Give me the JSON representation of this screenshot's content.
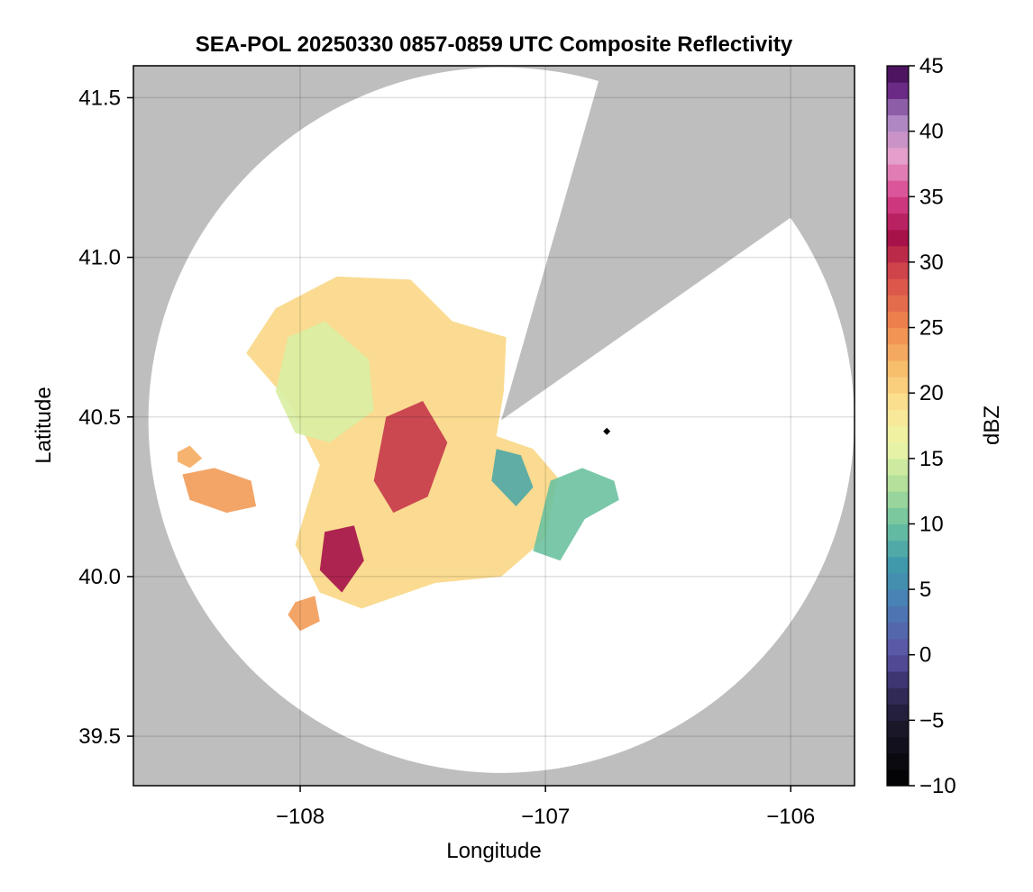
{
  "chart_data": {
    "type": "heatmap",
    "title": "SEA-POL 20250330 0857-0859 UTC Composite Reflectivity",
    "xlabel": "Longitude",
    "ylabel": "Latitude",
    "xlim": [
      -108.68,
      -105.74
    ],
    "ylim": [
      39.345,
      41.6
    ],
    "xticks": [
      -108,
      -107,
      -106
    ],
    "xtick_labels": [
      "−108",
      "−107",
      "−106"
    ],
    "yticks": [
      39.5,
      40.0,
      40.5,
      41.0,
      41.5
    ],
    "ytick_labels": [
      "39.5",
      "40.0",
      "40.5",
      "41.0",
      "41.5"
    ],
    "grid": true,
    "background_color": "#bebebe",
    "radar": {
      "center_lon": -107.18,
      "center_lat": 40.49,
      "radius_lat_deg": 1.105,
      "coverage_color": "#ffffff",
      "blocked_sectors": [
        {
          "from_bearing_deg": 16,
          "to_bearing_deg": 55
        }
      ],
      "site_marker": {
        "lon": -106.75,
        "lat": 40.455,
        "color": "#000000"
      }
    },
    "colorbar": {
      "label": "dBZ",
      "colormap": "spectral_r",
      "range": [
        -10,
        45
      ],
      "ticks": [
        -10,
        -5,
        0,
        5,
        10,
        15,
        20,
        25,
        30,
        35,
        40,
        45
      ],
      "tick_labels": [
        "−10",
        "−5",
        "0",
        "5",
        "10",
        "15",
        "20",
        "25",
        "30",
        "35",
        "40",
        "45"
      ],
      "stops": [
        {
          "v": -10,
          "c": "#000000"
        },
        {
          "v": -5,
          "c": "#1e1a2e"
        },
        {
          "v": -2,
          "c": "#3c3470"
        },
        {
          "v": 0,
          "c": "#5c52a6"
        },
        {
          "v": 4,
          "c": "#4a7fb5"
        },
        {
          "v": 7,
          "c": "#3f9aa9"
        },
        {
          "v": 10,
          "c": "#6cc2a0"
        },
        {
          "v": 13,
          "c": "#b2df9a"
        },
        {
          "v": 16,
          "c": "#edf6a8"
        },
        {
          "v": 19,
          "c": "#fbe493"
        },
        {
          "v": 22,
          "c": "#f7bc6a"
        },
        {
          "v": 25,
          "c": "#f08a4e"
        },
        {
          "v": 29,
          "c": "#d54a4a"
        },
        {
          "v": 32,
          "c": "#a51049"
        },
        {
          "v": 35,
          "c": "#d7418c"
        },
        {
          "v": 38,
          "c": "#e7a0cc"
        },
        {
          "v": 41,
          "c": "#a783c0"
        },
        {
          "v": 43,
          "c": "#6d2c8a"
        },
        {
          "v": 45,
          "c": "#3e0a4e"
        }
      ]
    },
    "echo_regions": [
      {
        "name": "main-band",
        "dbz": 20,
        "poly": [
          [
            -108.1,
            40.84
          ],
          [
            -107.85,
            40.94
          ],
          [
            -107.55,
            40.93
          ],
          [
            -107.38,
            40.8
          ],
          [
            -107.16,
            40.75
          ],
          [
            -107.17,
            40.58
          ],
          [
            -107.2,
            40.44
          ],
          [
            -107.05,
            40.4
          ],
          [
            -106.95,
            40.31
          ],
          [
            -107.0,
            40.12
          ],
          [
            -107.18,
            40.0
          ],
          [
            -107.45,
            39.98
          ],
          [
            -107.75,
            39.9
          ],
          [
            -107.92,
            39.95
          ],
          [
            -108.02,
            40.1
          ],
          [
            -107.92,
            40.35
          ],
          [
            -108.05,
            40.55
          ],
          [
            -108.22,
            40.7
          ]
        ]
      },
      {
        "name": "northwest-plateau",
        "dbz": 15,
        "poly": [
          [
            -108.05,
            40.75
          ],
          [
            -107.9,
            40.8
          ],
          [
            -107.72,
            40.68
          ],
          [
            -107.7,
            40.52
          ],
          [
            -107.88,
            40.42
          ],
          [
            -108.02,
            40.45
          ],
          [
            -108.1,
            40.58
          ]
        ]
      },
      {
        "name": "west-cell",
        "dbz": 24,
        "poly": [
          [
            -108.48,
            40.32
          ],
          [
            -108.35,
            40.34
          ],
          [
            -108.2,
            40.3
          ],
          [
            -108.18,
            40.22
          ],
          [
            -108.3,
            40.2
          ],
          [
            -108.45,
            40.24
          ]
        ]
      },
      {
        "name": "far-west-cell",
        "dbz": 23,
        "poly": [
          [
            -108.5,
            40.39
          ],
          [
            -108.45,
            40.41
          ],
          [
            -108.4,
            40.37
          ],
          [
            -108.45,
            40.34
          ],
          [
            -108.5,
            40.36
          ]
        ]
      },
      {
        "name": "southwest-cells",
        "dbz": 24,
        "poly": [
          [
            -108.02,
            39.92
          ],
          [
            -107.94,
            39.94
          ],
          [
            -107.92,
            39.86
          ],
          [
            -108.0,
            39.83
          ],
          [
            -108.05,
            39.88
          ]
        ]
      },
      {
        "name": "east-cluster",
        "dbz": 10,
        "poly": [
          [
            -106.98,
            40.3
          ],
          [
            -106.85,
            40.34
          ],
          [
            -106.72,
            40.3
          ],
          [
            -106.7,
            40.24
          ],
          [
            -106.84,
            40.18
          ],
          [
            -106.94,
            40.05
          ],
          [
            -107.05,
            40.08
          ]
        ]
      },
      {
        "name": "south-core",
        "dbz": 32,
        "poly": [
          [
            -107.9,
            40.14
          ],
          [
            -107.78,
            40.16
          ],
          [
            -107.74,
            40.05
          ],
          [
            -107.83,
            39.95
          ],
          [
            -107.92,
            40.02
          ]
        ]
      },
      {
        "name": "central-core",
        "dbz": 30,
        "poly": [
          [
            -107.65,
            40.5
          ],
          [
            -107.5,
            40.55
          ],
          [
            -107.4,
            40.42
          ],
          [
            -107.48,
            40.25
          ],
          [
            -107.62,
            40.2
          ],
          [
            -107.7,
            40.3
          ]
        ]
      },
      {
        "name": "band-edge",
        "dbz": 8,
        "poly": [
          [
            -107.2,
            40.4
          ],
          [
            -107.1,
            40.38
          ],
          [
            -107.05,
            40.28
          ],
          [
            -107.12,
            40.22
          ],
          [
            -107.22,
            40.3
          ]
        ]
      }
    ]
  }
}
